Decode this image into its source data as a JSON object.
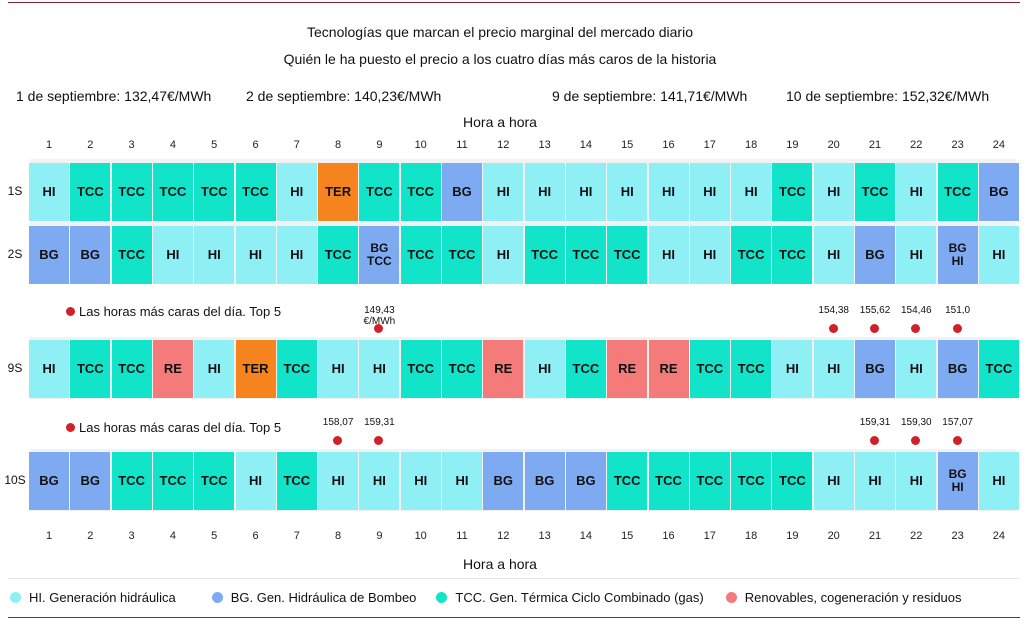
{
  "titles": {
    "line1": "Tecnologías que marcan el precio marginal del mercado diario",
    "line2": "Quién le ha puesto el precio a los cuatro días más caros de la historia"
  },
  "days": [
    "1 de septiembre: 132,47€/MWh",
    "2 de septiembre: 140,23€/MWh",
    "9 de septiembre: 141,71€/MWh",
    "10 de septiembre: 152,32€/MWh"
  ],
  "axis_title": "Hora a hora",
  "top5_label": "Las horas más caras del día. Top 5",
  "colors": {
    "HI": "#8ef0f5",
    "BG": "#7eaaf2",
    "TCC": "#12e4c9",
    "RE": "#f57a7a",
    "TER": "#f5841f",
    "marker": "#d0202a",
    "rule": "#8b2131"
  },
  "legend": [
    {
      "key": "HI",
      "label": "HI. Generación hidráulica"
    },
    {
      "key": "BG",
      "label": "BG. Gen. Hidráulica de Bombeo"
    },
    {
      "key": "TCC",
      "label": "TCC. Gen. Térmica Ciclo Combinado (gas)"
    },
    {
      "key": "RE",
      "label": "Renovables, cogeneración y residuos"
    }
  ],
  "chart_data": {
    "type": "table",
    "hours": [
      "1",
      "2",
      "3",
      "4",
      "5",
      "6",
      "7",
      "8",
      "9",
      "10",
      "11",
      "12",
      "13",
      "14",
      "15",
      "16",
      "17",
      "18",
      "19",
      "20",
      "21",
      "22",
      "23",
      "24"
    ],
    "rows": [
      {
        "label": "1S",
        "cells": [
          [
            "HI"
          ],
          [
            "TCC"
          ],
          [
            "TCC"
          ],
          [
            "TCC"
          ],
          [
            "TCC"
          ],
          [
            "TCC"
          ],
          [
            "HI"
          ],
          [
            "TER"
          ],
          [
            "TCC"
          ],
          [
            "TCC"
          ],
          [
            "BG"
          ],
          [
            "HI"
          ],
          [
            "HI"
          ],
          [
            "HI"
          ],
          [
            "HI"
          ],
          [
            "HI"
          ],
          [
            "HI"
          ],
          [
            "HI"
          ],
          [
            "TCC"
          ],
          [
            "HI"
          ],
          [
            "TCC"
          ],
          [
            "HI"
          ],
          [
            "TCC"
          ],
          [
            "BG"
          ]
        ],
        "top_hours": []
      },
      {
        "label": "2S",
        "cells": [
          [
            "BG"
          ],
          [
            "BG"
          ],
          [
            "TCC"
          ],
          [
            "HI"
          ],
          [
            "HI"
          ],
          [
            "HI"
          ],
          [
            "HI"
          ],
          [
            "TCC"
          ],
          [
            "BG",
            "TCC"
          ],
          [
            "TCC"
          ],
          [
            "TCC"
          ],
          [
            "HI"
          ],
          [
            "TCC"
          ],
          [
            "TCC"
          ],
          [
            "TCC"
          ],
          [
            "HI"
          ],
          [
            "HI"
          ],
          [
            "TCC"
          ],
          [
            "TCC"
          ],
          [
            "HI"
          ],
          [
            "BG"
          ],
          [
            "HI"
          ],
          [
            "BG",
            "HI"
          ],
          [
            "HI"
          ]
        ],
        "top_hours": []
      },
      {
        "label": "9S",
        "cells": [
          [
            "HI"
          ],
          [
            "TCC"
          ],
          [
            "TCC"
          ],
          [
            "RE"
          ],
          [
            "HI"
          ],
          [
            "TER"
          ],
          [
            "TCC"
          ],
          [
            "HI"
          ],
          [
            "HI"
          ],
          [
            "TCC"
          ],
          [
            "TCC"
          ],
          [
            "RE"
          ],
          [
            "HI"
          ],
          [
            "TCC"
          ],
          [
            "RE"
          ],
          [
            "RE"
          ],
          [
            "TCC"
          ],
          [
            "TCC"
          ],
          [
            "HI"
          ],
          [
            "HI"
          ],
          [
            "BG"
          ],
          [
            "HI"
          ],
          [
            "BG"
          ],
          [
            "TCC"
          ]
        ],
        "top_hours": [
          {
            "hour": 9,
            "price": "149,43 €/MWh"
          },
          {
            "hour": 20,
            "price": "154,38"
          },
          {
            "hour": 21,
            "price": "155,62"
          },
          {
            "hour": 22,
            "price": "154,46"
          },
          {
            "hour": 23,
            "price": "151,0"
          }
        ]
      },
      {
        "label": "10S",
        "cells": [
          [
            "BG"
          ],
          [
            "BG"
          ],
          [
            "TCC"
          ],
          [
            "TCC"
          ],
          [
            "TCC"
          ],
          [
            "HI"
          ],
          [
            "TCC"
          ],
          [
            "HI"
          ],
          [
            "HI"
          ],
          [
            "HI"
          ],
          [
            "HI"
          ],
          [
            "BG"
          ],
          [
            "BG"
          ],
          [
            "BG"
          ],
          [
            "TCC"
          ],
          [
            "TCC"
          ],
          [
            "TCC"
          ],
          [
            "TCC"
          ],
          [
            "TCC"
          ],
          [
            "HI"
          ],
          [
            "HI"
          ],
          [
            "HI"
          ],
          [
            "BG",
            "HI"
          ],
          [
            "HI"
          ]
        ],
        "top_hours": [
          {
            "hour": 8,
            "price": "158,07"
          },
          {
            "hour": 9,
            "price": "159,31"
          },
          {
            "hour": 21,
            "price": "159,31"
          },
          {
            "hour": 22,
            "price": "159,30"
          },
          {
            "hour": 23,
            "price": "157,07"
          }
        ]
      }
    ]
  }
}
